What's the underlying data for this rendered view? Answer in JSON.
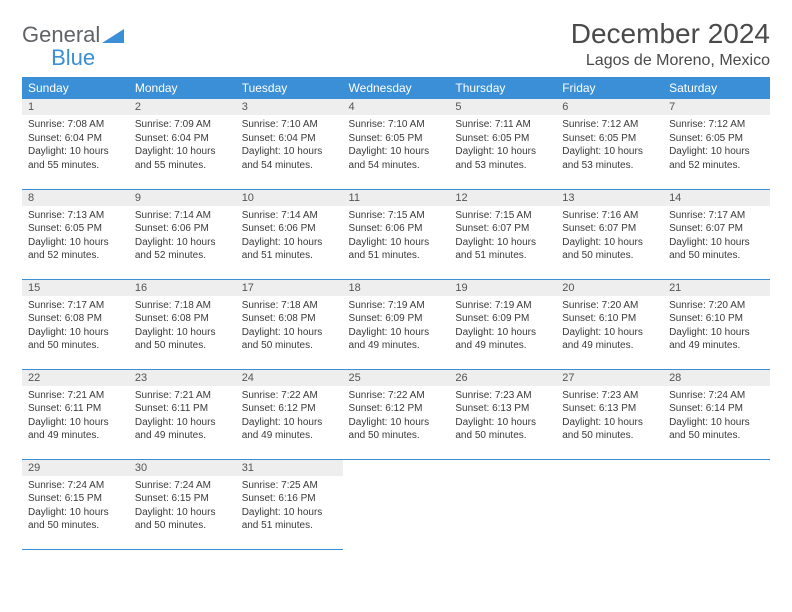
{
  "logo": {
    "general": "General",
    "blue": "Blue"
  },
  "header": {
    "title": "December 2024",
    "location": "Lagos de Moreno, Mexico"
  },
  "colors": {
    "accent": "#3a8fd6",
    "daybar": "#eeeeee",
    "text": "#333333",
    "bg": "#ffffff"
  },
  "weekdays": [
    "Sunday",
    "Monday",
    "Tuesday",
    "Wednesday",
    "Thursday",
    "Friday",
    "Saturday"
  ],
  "days": [
    {
      "n": "1",
      "sr": "Sunrise: 7:08 AM",
      "ss": "Sunset: 6:04 PM",
      "dl": "Daylight: 10 hours and 55 minutes."
    },
    {
      "n": "2",
      "sr": "Sunrise: 7:09 AM",
      "ss": "Sunset: 6:04 PM",
      "dl": "Daylight: 10 hours and 55 minutes."
    },
    {
      "n": "3",
      "sr": "Sunrise: 7:10 AM",
      "ss": "Sunset: 6:04 PM",
      "dl": "Daylight: 10 hours and 54 minutes."
    },
    {
      "n": "4",
      "sr": "Sunrise: 7:10 AM",
      "ss": "Sunset: 6:05 PM",
      "dl": "Daylight: 10 hours and 54 minutes."
    },
    {
      "n": "5",
      "sr": "Sunrise: 7:11 AM",
      "ss": "Sunset: 6:05 PM",
      "dl": "Daylight: 10 hours and 53 minutes."
    },
    {
      "n": "6",
      "sr": "Sunrise: 7:12 AM",
      "ss": "Sunset: 6:05 PM",
      "dl": "Daylight: 10 hours and 53 minutes."
    },
    {
      "n": "7",
      "sr": "Sunrise: 7:12 AM",
      "ss": "Sunset: 6:05 PM",
      "dl": "Daylight: 10 hours and 52 minutes."
    },
    {
      "n": "8",
      "sr": "Sunrise: 7:13 AM",
      "ss": "Sunset: 6:05 PM",
      "dl": "Daylight: 10 hours and 52 minutes."
    },
    {
      "n": "9",
      "sr": "Sunrise: 7:14 AM",
      "ss": "Sunset: 6:06 PM",
      "dl": "Daylight: 10 hours and 52 minutes."
    },
    {
      "n": "10",
      "sr": "Sunrise: 7:14 AM",
      "ss": "Sunset: 6:06 PM",
      "dl": "Daylight: 10 hours and 51 minutes."
    },
    {
      "n": "11",
      "sr": "Sunrise: 7:15 AM",
      "ss": "Sunset: 6:06 PM",
      "dl": "Daylight: 10 hours and 51 minutes."
    },
    {
      "n": "12",
      "sr": "Sunrise: 7:15 AM",
      "ss": "Sunset: 6:07 PM",
      "dl": "Daylight: 10 hours and 51 minutes."
    },
    {
      "n": "13",
      "sr": "Sunrise: 7:16 AM",
      "ss": "Sunset: 6:07 PM",
      "dl": "Daylight: 10 hours and 50 minutes."
    },
    {
      "n": "14",
      "sr": "Sunrise: 7:17 AM",
      "ss": "Sunset: 6:07 PM",
      "dl": "Daylight: 10 hours and 50 minutes."
    },
    {
      "n": "15",
      "sr": "Sunrise: 7:17 AM",
      "ss": "Sunset: 6:08 PM",
      "dl": "Daylight: 10 hours and 50 minutes."
    },
    {
      "n": "16",
      "sr": "Sunrise: 7:18 AM",
      "ss": "Sunset: 6:08 PM",
      "dl": "Daylight: 10 hours and 50 minutes."
    },
    {
      "n": "17",
      "sr": "Sunrise: 7:18 AM",
      "ss": "Sunset: 6:08 PM",
      "dl": "Daylight: 10 hours and 50 minutes."
    },
    {
      "n": "18",
      "sr": "Sunrise: 7:19 AM",
      "ss": "Sunset: 6:09 PM",
      "dl": "Daylight: 10 hours and 49 minutes."
    },
    {
      "n": "19",
      "sr": "Sunrise: 7:19 AM",
      "ss": "Sunset: 6:09 PM",
      "dl": "Daylight: 10 hours and 49 minutes."
    },
    {
      "n": "20",
      "sr": "Sunrise: 7:20 AM",
      "ss": "Sunset: 6:10 PM",
      "dl": "Daylight: 10 hours and 49 minutes."
    },
    {
      "n": "21",
      "sr": "Sunrise: 7:20 AM",
      "ss": "Sunset: 6:10 PM",
      "dl": "Daylight: 10 hours and 49 minutes."
    },
    {
      "n": "22",
      "sr": "Sunrise: 7:21 AM",
      "ss": "Sunset: 6:11 PM",
      "dl": "Daylight: 10 hours and 49 minutes."
    },
    {
      "n": "23",
      "sr": "Sunrise: 7:21 AM",
      "ss": "Sunset: 6:11 PM",
      "dl": "Daylight: 10 hours and 49 minutes."
    },
    {
      "n": "24",
      "sr": "Sunrise: 7:22 AM",
      "ss": "Sunset: 6:12 PM",
      "dl": "Daylight: 10 hours and 49 minutes."
    },
    {
      "n": "25",
      "sr": "Sunrise: 7:22 AM",
      "ss": "Sunset: 6:12 PM",
      "dl": "Daylight: 10 hours and 50 minutes."
    },
    {
      "n": "26",
      "sr": "Sunrise: 7:23 AM",
      "ss": "Sunset: 6:13 PM",
      "dl": "Daylight: 10 hours and 50 minutes."
    },
    {
      "n": "27",
      "sr": "Sunrise: 7:23 AM",
      "ss": "Sunset: 6:13 PM",
      "dl": "Daylight: 10 hours and 50 minutes."
    },
    {
      "n": "28",
      "sr": "Sunrise: 7:24 AM",
      "ss": "Sunset: 6:14 PM",
      "dl": "Daylight: 10 hours and 50 minutes."
    },
    {
      "n": "29",
      "sr": "Sunrise: 7:24 AM",
      "ss": "Sunset: 6:15 PM",
      "dl": "Daylight: 10 hours and 50 minutes."
    },
    {
      "n": "30",
      "sr": "Sunrise: 7:24 AM",
      "ss": "Sunset: 6:15 PM",
      "dl": "Daylight: 10 hours and 50 minutes."
    },
    {
      "n": "31",
      "sr": "Sunrise: 7:25 AM",
      "ss": "Sunset: 6:16 PM",
      "dl": "Daylight: 10 hours and 51 minutes."
    }
  ]
}
